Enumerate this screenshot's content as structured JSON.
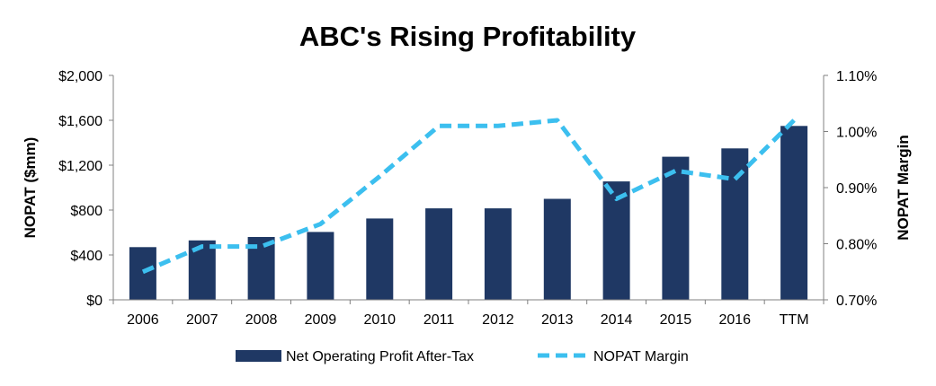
{
  "chart_data": {
    "type": "bar",
    "title": "ABC's Rising Profitability",
    "categories": [
      "2006",
      "2007",
      "2008",
      "2009",
      "2010",
      "2011",
      "2012",
      "2013",
      "2014",
      "2015",
      "2016",
      "TTM"
    ],
    "ylabel": "NOPAT ($mm)",
    "y2label": "NOPAT Margin",
    "ylim": [
      0,
      2000
    ],
    "y2lim": [
      0.7,
      1.1
    ],
    "yticks": [
      "$0",
      "$400",
      "$800",
      "$1,200",
      "$1,600",
      "$2,000"
    ],
    "y2ticks": [
      "0.70%",
      "0.80%",
      "0.90%",
      "1.00%",
      "1.10%"
    ],
    "grid": false,
    "legend_position": "bottom",
    "series": [
      {
        "name": "Net Operating Profit After-Tax",
        "type": "bar",
        "axis": "left",
        "color": "#1F3864",
        "values": [
          470,
          530,
          560,
          605,
          725,
          815,
          815,
          900,
          1055,
          1275,
          1350,
          1550
        ]
      },
      {
        "name": "NOPAT Margin",
        "type": "line",
        "style": "dashed",
        "axis": "right",
        "color": "#3CBFEF",
        "values": [
          0.75,
          0.795,
          0.795,
          0.835,
          0.92,
          1.01,
          1.01,
          1.02,
          0.88,
          0.93,
          0.915,
          1.02
        ]
      }
    ]
  }
}
